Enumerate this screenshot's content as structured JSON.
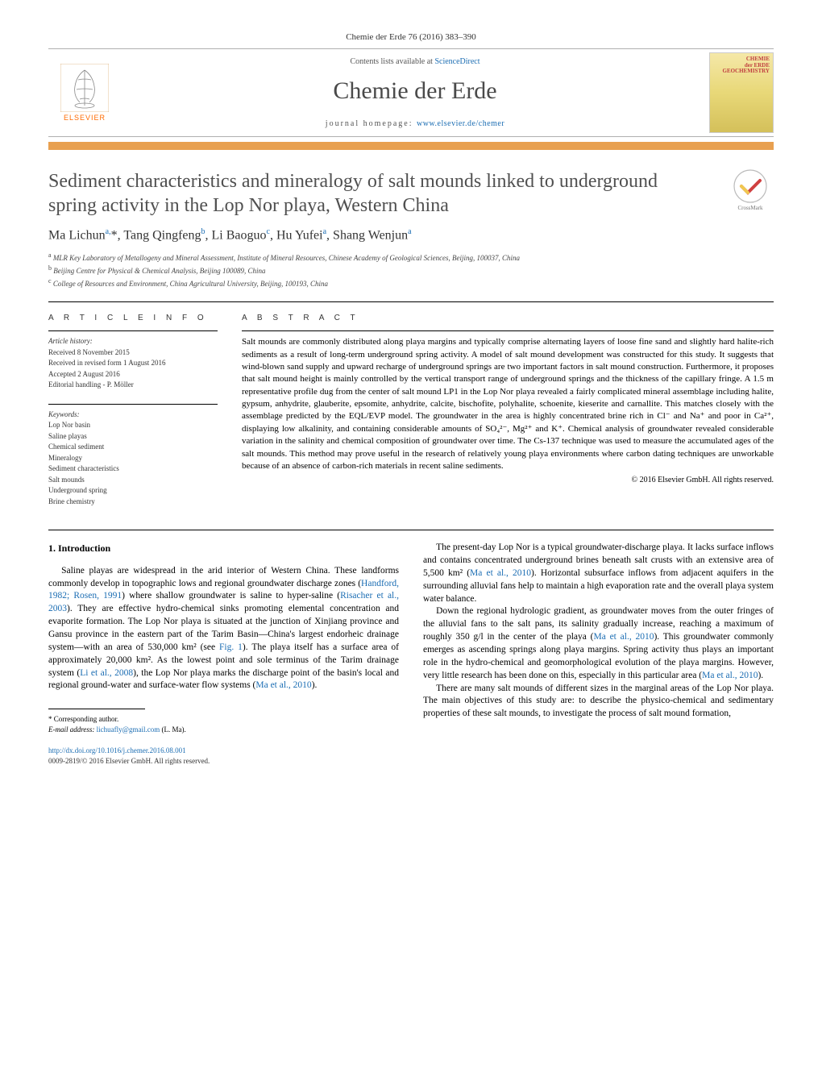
{
  "journal_ref": "Chemie der Erde 76 (2016) 383–390",
  "header": {
    "contents_prefix": "Contents lists available at ",
    "contents_link": "ScienceDirect",
    "journal_name": "Chemie der Erde",
    "homepage_prefix": "journal homepage: ",
    "homepage_link": "www.elsevier.de/chemer",
    "elsevier_label": "ELSEVIER",
    "cover_line1": "CHEMIE",
    "cover_line2": "der ERDE",
    "cover_line3": "GEOCHEMISTRY"
  },
  "crossmark_label": "CrossMark",
  "title": "Sediment characteristics and mineralogy of salt mounds linked to underground spring activity in the Lop Nor playa, Western China",
  "authors_html": "Ma Lichun<sup>a,</sup>*, Tang Qingfeng<sup>b</sup>, Li Baoguo<sup>c</sup>, Hu Yufei<sup>a</sup>, Shang Wenjun<sup>a</sup>",
  "affiliations": [
    "a MLR Key Laboratory of Metallogeny and Mineral Assessment, Institute of Mineral Resources, Chinese Academy of Geological Sciences, Beijing, 100037, China",
    "b Beijing Centre for Physical & Chemical Analysis, Beijing 100089, China",
    "c College of Resources and Environment, China Agricultural University, Beijing, 100193, China"
  ],
  "article_info": {
    "header": "A R T I C L E   I N F O",
    "history_label": "Article history:",
    "history": [
      "Received 8 November 2015",
      "Received in revised form 1 August 2016",
      "Accepted 2 August 2016",
      "Editorial handling - P. Möller"
    ],
    "keywords_label": "Keywords:",
    "keywords": [
      "Lop Nor basin",
      "Saline playas",
      "Chemical sediment",
      "Mineralogy",
      "Sediment characteristics",
      "Salt mounds",
      "Underground spring",
      "Brine chemistry"
    ]
  },
  "abstract": {
    "header": "A B S T R A C T",
    "text": "Salt mounds are commonly distributed along playa margins and typically comprise alternating layers of loose fine sand and slightly hard halite-rich sediments as a result of long-term underground spring activity. A model of salt mound development was constructed for this study. It suggests that wind-blown sand supply and upward recharge of underground springs are two important factors in salt mound construction. Furthermore, it proposes that salt mound height is mainly controlled by the vertical transport range of underground springs and the thickness of the capillary fringe. A 1.5 m representative profile dug from the center of salt mound LP1 in the Lop Nor playa revealed a fairly complicated mineral assemblage including halite, gypsum, anhydrite, glauberite, epsomite, anhydrite, calcite, bischofite, polyhalite, schoenite, kieserite and carnallite. This matches closely with the assemblage predicted by the EQL/EVP model. The groundwater in the area is highly concentrated brine rich in Cl⁻ and Na⁺ and poor in Ca²⁺, displaying low alkalinity, and containing considerable amounts of SO₄²⁻, Mg²⁺ and K⁺. Chemical analysis of groundwater revealed considerable variation in the salinity and chemical composition of groundwater over time. The Cs-137 technique was used to measure the accumulated ages of the salt mounds. This method may prove useful in the research of relatively young playa environments where carbon dating techniques are unworkable because of an absence of carbon-rich materials in recent saline sediments.",
    "copyright": "© 2016 Elsevier GmbH. All rights reserved."
  },
  "body": {
    "intro_heading": "1. Introduction",
    "col1_paras": [
      "Saline playas are widespread in the arid interior of Western China. These landforms commonly develop in topographic lows and regional groundwater discharge zones (<span class=\"cite\">Handford, 1982; Rosen, 1991</span>) where shallow groundwater is saline to hyper-saline (<span class=\"cite\">Risacher et al., 2003</span>). They are effective hydro-chemical sinks promoting elemental concentration and evaporite formation. The Lop Nor playa is situated at the junction of Xinjiang province and Gansu province in the eastern part of the Tarim Basin—China's largest endorheic drainage system—with an area of 530,000 km² (see <span class=\"cite\">Fig. 1</span>). The playa itself has a surface area of approximately 20,000 km². As the lowest point and sole terminus of the Tarim drainage system (<span class=\"cite\">Li et al., 2008</span>), the Lop Nor playa marks the discharge point of the basin's local and regional ground-water and surface-water flow systems (<span class=\"cite\">Ma et al., 2010</span>)."
    ],
    "col2_paras": [
      "The present-day Lop Nor is a typical groundwater-discharge playa. It lacks surface inflows and contains concentrated underground brines beneath salt crusts with an extensive area of 5,500 km² (<span class=\"cite\">Ma et al., 2010</span>). Horizontal subsurface inflows from adjacent aquifers in the surrounding alluvial fans help to maintain a high evaporation rate and the overall playa system water balance.",
      "Down the regional hydrologic gradient, as groundwater moves from the outer fringes of the alluvial fans to the salt pans, its salinity gradually increase, reaching a maximum of roughly 350 g/l in the center of the playa (<span class=\"cite\">Ma et al., 2010</span>). This groundwater commonly emerges as ascending springs along playa margins. Spring activity thus plays an important role in the hydro-chemical and geomorphological evolution of the playa margins. However, very little research has been done on this, especially in this particular area (<span class=\"cite\">Ma et al., 2010</span>).",
      "There are many salt mounds of different sizes in the marginal areas of the Lop Nor playa. The main objectives of this study are: to describe the physico-chemical and sedimentary properties of these salt mounds, to investigate the process of salt mound formation,"
    ]
  },
  "footer": {
    "corr_label": "* Corresponding author.",
    "email_label": "E-mail address: ",
    "email": "lichuafly@gmail.com",
    "email_suffix": " (L. Ma).",
    "doi": "http://dx.doi.org/10.1016/j.chemer.2016.08.001",
    "issn_line": "0009-2819/© 2016 Elsevier GmbH. All rights reserved."
  },
  "colors": {
    "link": "#1b6db3",
    "orange_bar": "#e8a050",
    "elsevier_orange": "#ff6b00",
    "title_gray": "#505050"
  }
}
